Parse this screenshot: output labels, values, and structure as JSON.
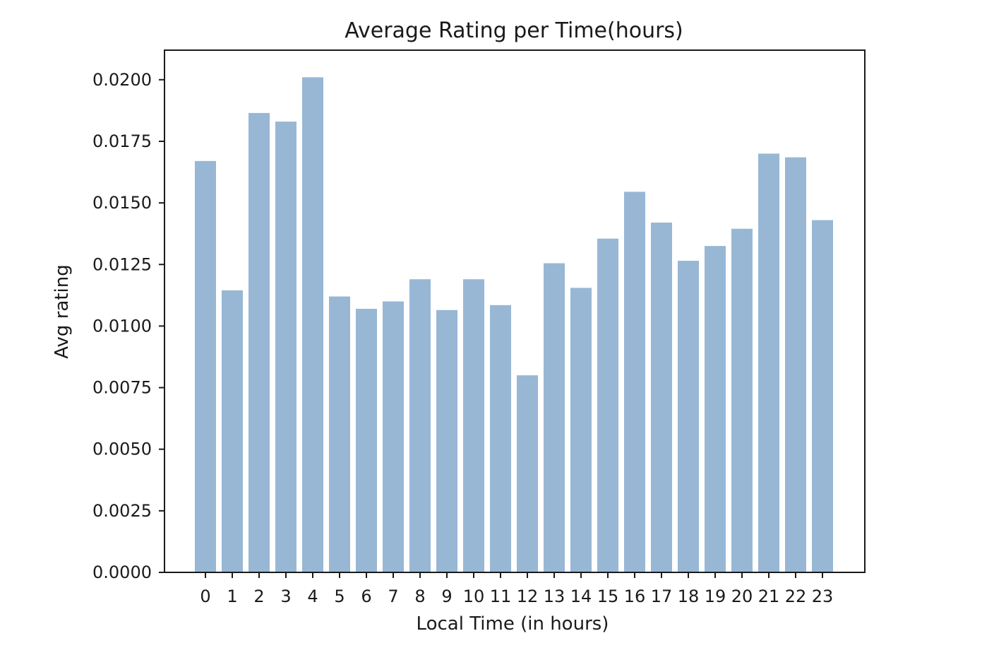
{
  "chart_data": {
    "type": "bar",
    "title": "Average Rating per Time(hours)",
    "xlabel": "Local Time (in hours)",
    "ylabel": "Avg rating",
    "categories": [
      "0",
      "1",
      "2",
      "3",
      "4",
      "5",
      "6",
      "7",
      "8",
      "9",
      "10",
      "11",
      "12",
      "13",
      "14",
      "15",
      "16",
      "17",
      "18",
      "19",
      "20",
      "21",
      "22",
      "23"
    ],
    "values": [
      0.0167,
      0.01145,
      0.01865,
      0.0183,
      0.0201,
      0.0112,
      0.0107,
      0.011,
      0.0119,
      0.01065,
      0.0119,
      0.01085,
      0.008,
      0.01255,
      0.01155,
      0.01355,
      0.01545,
      0.0142,
      0.01265,
      0.01325,
      0.01395,
      0.017,
      0.01685,
      0.0143
    ],
    "ylim": [
      0,
      0.0212
    ],
    "yticks": [
      "0.0000",
      "0.0025",
      "0.0050",
      "0.0075",
      "0.0100",
      "0.0125",
      "0.0150",
      "0.0175",
      "0.0200"
    ],
    "grid": false,
    "colors": {
      "bar": "#97b7d5",
      "axis": "#1a1a1a"
    }
  }
}
